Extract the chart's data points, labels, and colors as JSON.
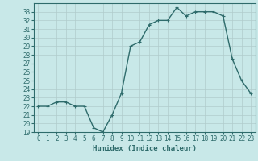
{
  "x": [
    0,
    1,
    2,
    3,
    4,
    5,
    6,
    7,
    8,
    9,
    10,
    11,
    12,
    13,
    14,
    15,
    16,
    17,
    18,
    19,
    20,
    21,
    22,
    23
  ],
  "y": [
    22,
    22,
    22.5,
    22.5,
    22,
    22,
    19.5,
    19,
    21,
    23.5,
    29,
    29.5,
    31.5,
    32,
    32,
    33.5,
    32.5,
    33,
    33,
    33,
    32.5,
    27.5,
    25,
    23.5
  ],
  "line_color": "#2e6b6b",
  "marker": "+",
  "marker_size": 3,
  "bg_color": "#c8e8e8",
  "grid_color": "#b0cccc",
  "xlabel": "Humidex (Indice chaleur)",
  "xlim": [
    -0.5,
    23.5
  ],
  "ylim": [
    19,
    34
  ],
  "yticks": [
    19,
    20,
    21,
    22,
    23,
    24,
    25,
    26,
    27,
    28,
    29,
    30,
    31,
    32,
    33
  ],
  "xticks": [
    0,
    1,
    2,
    3,
    4,
    5,
    6,
    7,
    8,
    9,
    10,
    11,
    12,
    13,
    14,
    15,
    16,
    17,
    18,
    19,
    20,
    21,
    22,
    23
  ],
  "tick_label_fontsize": 5.5,
  "xlabel_fontsize": 6.5,
  "line_width": 1.0,
  "spine_color": "#2e6b6b",
  "tick_color": "#2e6b6b",
  "label_color": "#2e6b6b"
}
